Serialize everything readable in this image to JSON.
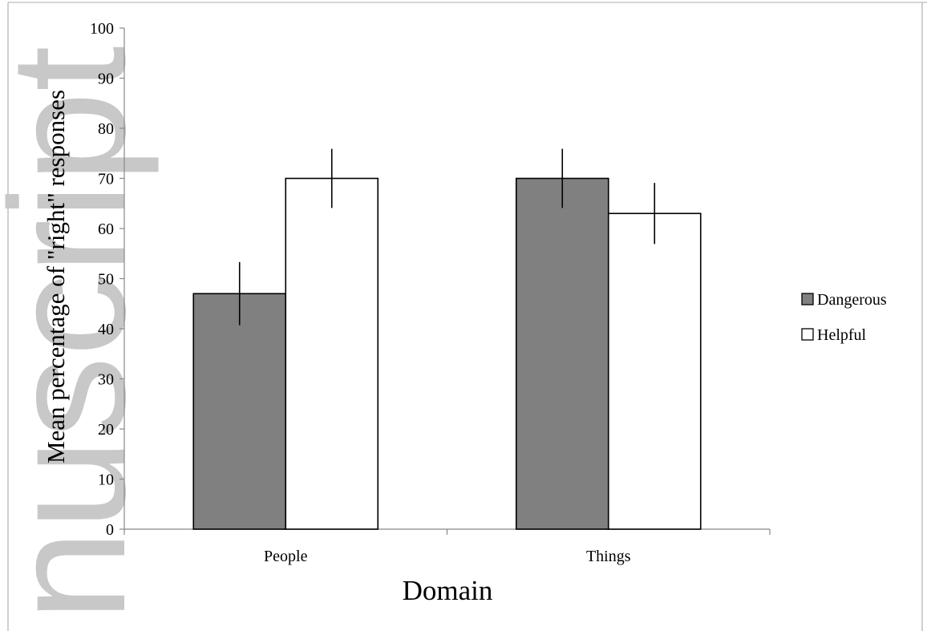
{
  "chart_data": {
    "type": "bar",
    "categories": [
      "People",
      "Things"
    ],
    "series": [
      {
        "name": "Dangerous",
        "values": [
          47,
          70
        ],
        "error": [
          6.3,
          5.9
        ],
        "color": "#808080"
      },
      {
        "name": "Helpful",
        "values": [
          70,
          63
        ],
        "error": [
          5.9,
          6.1
        ],
        "color": "#ffffff"
      }
    ],
    "xlabel": "Domain",
    "ylabel": "Mean percentage of \"right\" responses",
    "ylim": [
      0,
      100
    ],
    "yticks": [
      0,
      10,
      20,
      30,
      40,
      50,
      60,
      70,
      80,
      90,
      100
    ],
    "grid": false,
    "legend_position": "right"
  },
  "watermark": "nuscript"
}
